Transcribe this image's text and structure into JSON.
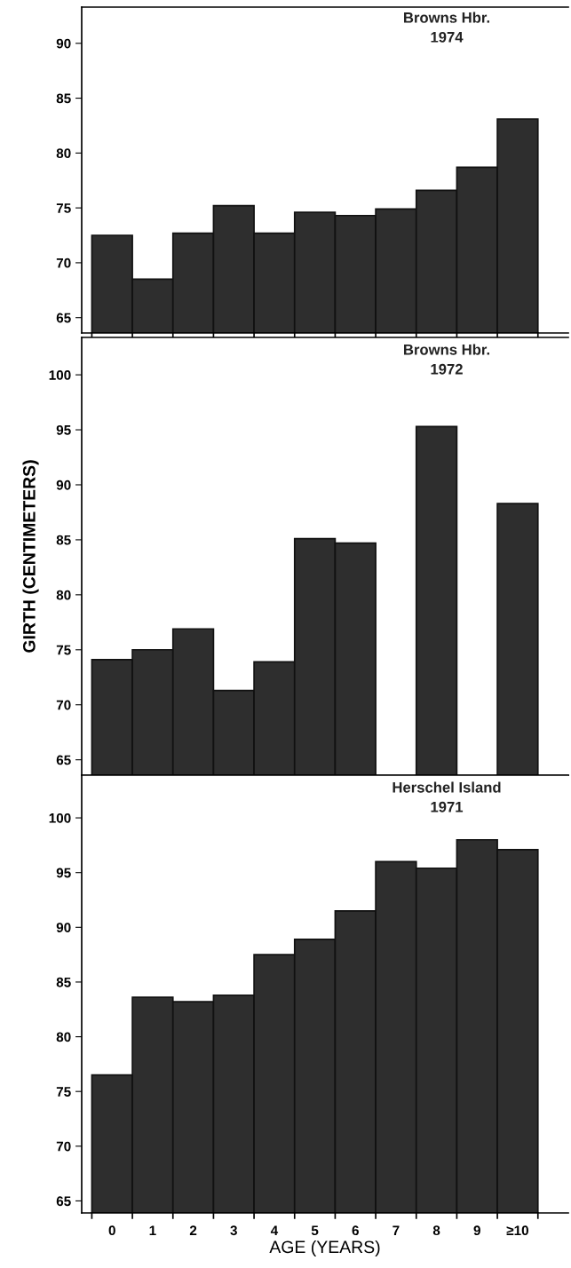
{
  "chart_data": [
    {
      "type": "bar",
      "title": "Browns Hbr.",
      "subtitle": "1974",
      "categories": [
        null,
        null,
        null,
        null,
        null,
        null,
        null,
        null,
        null,
        null,
        null
      ],
      "tick_labels": "y",
      "color": "#2e2e2e",
      "values": [
        72.5,
        68.5,
        72.7,
        75.2,
        72.7,
        74.6,
        74.3,
        74.9,
        76.6,
        78.7,
        83.1
      ],
      "ylim": [
        63.6,
        93.3
      ],
      "yticks": [
        65,
        70,
        75,
        80,
        85,
        90
      ],
      "grid": false
    },
    {
      "type": "bar",
      "title": "Browns Hbr.",
      "subtitle": "1972",
      "ylabel": "GIRTH (CENTIMETERS)",
      "categories": [
        null,
        null,
        null,
        null,
        null,
        null,
        null,
        null,
        null,
        null,
        null
      ],
      "tick_labels": "y",
      "color": "#2e2e2e",
      "values": [
        74.1,
        75.0,
        76.9,
        71.3,
        73.9,
        85.1,
        84.7,
        null,
        95.3,
        null,
        88.3
      ],
      "ylim": [
        63.6,
        103.4
      ],
      "yticks": [
        65,
        70,
        75,
        80,
        85,
        90,
        95,
        100
      ],
      "grid": false
    },
    {
      "type": "bar",
      "title": "Herschel Island",
      "subtitle": "1971",
      "xlabel": "AGE (YEARS)",
      "categories": [
        "0",
        "1",
        "2",
        "3",
        "4",
        "5",
        "6",
        "7",
        "8",
        "9",
        "≥10"
      ],
      "color": "#2e2e2e",
      "values": [
        76.5,
        83.6,
        83.2,
        83.8,
        87.5,
        88.9,
        91.5,
        96.0,
        95.4,
        98.0,
        97.1
      ],
      "ylim": [
        63.9,
        103.9
      ],
      "yticks": [
        65,
        70,
        75,
        80,
        85,
        90,
        95,
        100
      ],
      "grid": false
    }
  ]
}
